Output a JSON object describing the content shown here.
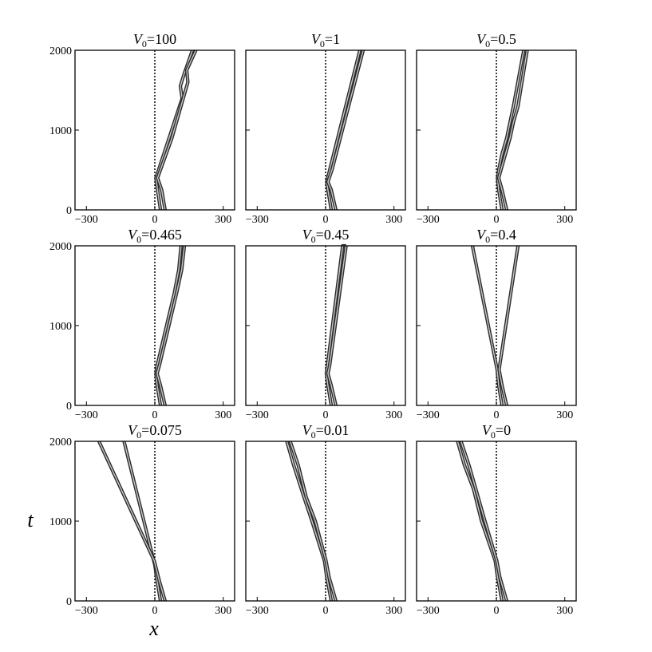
{
  "figure": {
    "xlabel": "x",
    "ylabel": "t"
  },
  "chart_data": [
    {
      "type": "line",
      "panel_title": {
        "var": "V",
        "sub": "0",
        "val": "=100"
      },
      "xlim": [
        -350,
        350
      ],
      "ylim": [
        0,
        2000
      ],
      "xticks": [
        -300,
        0,
        300
      ],
      "xticklabels": [
        "−300",
        "0",
        "300"
      ],
      "yticks": [
        0,
        1000,
        2000
      ],
      "yticklabels": [
        "0",
        "1000",
        "2000"
      ],
      "reference_line": {
        "x": 0,
        "style": "dotted"
      },
      "series": [
        {
          "x": [
            25,
            12,
            5,
            120,
            112,
            128,
            165
          ],
          "t": [
            0,
            250,
            400,
            1400,
            1550,
            1700,
            2000
          ]
        },
        {
          "x": [
            45,
            30,
            12,
            75,
            145,
            140,
            180
          ],
          "t": [
            0,
            250,
            400,
            900,
            1600,
            1750,
            2000
          ]
        }
      ]
    },
    {
      "type": "line",
      "panel_title": {
        "var": "V",
        "sub": "0",
        "val": "=1"
      },
      "xlim": [
        -350,
        350
      ],
      "ylim": [
        0,
        2000
      ],
      "xticks": [
        -300,
        0,
        300
      ],
      "xticklabels": [
        "−300",
        "0",
        "300"
      ],
      "yticks": [
        0,
        1000,
        2000
      ],
      "yticklabels": [
        "0",
        "1000",
        "2000"
      ],
      "reference_line": {
        "x": 0,
        "style": "dotted"
      },
      "series": [
        {
          "x": [
            25,
            10,
            5,
            18,
            150
          ],
          "t": [
            0,
            250,
            350,
            500,
            2000
          ]
        },
        {
          "x": [
            45,
            25,
            10,
            28,
            165
          ],
          "t": [
            0,
            250,
            350,
            500,
            2000
          ]
        }
      ]
    },
    {
      "type": "line",
      "panel_title": {
        "var": "V",
        "sub": "0",
        "val": "=0.5"
      },
      "xlim": [
        -350,
        350
      ],
      "ylim": [
        0,
        2000
      ],
      "xticks": [
        -300,
        0,
        300
      ],
      "xticklabels": [
        "−300",
        "0",
        "300"
      ],
      "yticks": [
        0,
        1000,
        2000
      ],
      "yticklabels": [
        "0",
        "1000",
        "2000"
      ],
      "reference_line": {
        "x": 0,
        "style": "dotted"
      },
      "series": [
        {
          "x": [
            25,
            10,
            5,
            10,
            25,
            45,
            60,
            75,
            120
          ],
          "t": [
            0,
            250,
            400,
            500,
            700,
            900,
            1100,
            1300,
            2000
          ]
        },
        {
          "x": [
            45,
            25,
            10,
            20,
            40,
            60,
            75,
            95,
            135
          ],
          "t": [
            0,
            250,
            400,
            500,
            700,
            900,
            1100,
            1300,
            2000
          ]
        }
      ]
    },
    {
      "type": "line",
      "panel_title": {
        "var": "V",
        "sub": "0",
        "val": "=0.465"
      },
      "xlim": [
        -350,
        350
      ],
      "ylim": [
        0,
        2000
      ],
      "xticks": [
        -300,
        0,
        300
      ],
      "xticklabels": [
        "−300",
        "0",
        "300"
      ],
      "yticks": [
        0,
        1000,
        2000
      ],
      "yticklabels": [
        "0",
        "1000",
        "2000"
      ],
      "reference_line": {
        "x": 0,
        "style": "dotted"
      },
      "series": [
        {
          "x": [
            25,
            10,
            5,
            10,
            35,
            60,
            85,
            105,
            115
          ],
          "t": [
            0,
            250,
            400,
            500,
            800,
            1100,
            1400,
            1700,
            2000
          ]
        },
        {
          "x": [
            45,
            25,
            10,
            20,
            45,
            70,
            95,
            118,
            130
          ],
          "t": [
            0,
            250,
            400,
            500,
            800,
            1100,
            1400,
            1700,
            2000
          ]
        }
      ]
    },
    {
      "type": "line",
      "panel_title": {
        "var": "V",
        "sub": "0",
        "val": "=0.45"
      },
      "xlim": [
        -350,
        350
      ],
      "ylim": [
        0,
        2000
      ],
      "xticks": [
        -300,
        0,
        300
      ],
      "xticklabels": [
        "−300",
        "0",
        "300"
      ],
      "yticks": [
        0,
        1000,
        2000
      ],
      "yticklabels": [
        "0",
        "1000",
        "2000"
      ],
      "reference_line": {
        "x": 0,
        "style": "dotted"
      },
      "series": [
        {
          "x": [
            25,
            10,
            3,
            8,
            75,
            90
          ],
          "t": [
            0,
            250,
            400,
            500,
            2000,
            2000
          ]
        },
        {
          "x": [
            45,
            25,
            10,
            18,
            90
          ],
          "t": [
            0,
            250,
            400,
            500,
            2000
          ]
        }
      ]
    },
    {
      "type": "line",
      "panel_title": {
        "var": "V",
        "sub": "0",
        "val": "=0.4"
      },
      "xlim": [
        -350,
        350
      ],
      "ylim": [
        0,
        2000
      ],
      "xticks": [
        -300,
        0,
        300
      ],
      "xticklabels": [
        "−300",
        "0",
        "300"
      ],
      "yticks": [
        0,
        1000,
        2000
      ],
      "yticklabels": [
        "0",
        "1000",
        "2000"
      ],
      "reference_line": {
        "x": 0,
        "style": "dotted"
      },
      "series": [
        {
          "x": [
            25,
            10,
            3,
            -105
          ],
          "t": [
            0,
            250,
            450,
            2000
          ]
        },
        {
          "x": [
            45,
            25,
            12,
            95
          ],
          "t": [
            0,
            250,
            450,
            2000
          ]
        }
      ]
    },
    {
      "type": "line",
      "panel_title": {
        "var": "V",
        "sub": "0",
        "val": "=0.075"
      },
      "xlim": [
        -350,
        350
      ],
      "ylim": [
        0,
        2000
      ],
      "xticks": [
        -300,
        0,
        300
      ],
      "xticklabels": [
        "−300",
        "0",
        "300"
      ],
      "yticks": [
        0,
        1000,
        2000
      ],
      "yticklabels": [
        "0",
        "1000",
        "2000"
      ],
      "reference_line": {
        "x": 0,
        "style": "dotted"
      },
      "series": [
        {
          "x": [
            25,
            10,
            0,
            -135
          ],
          "t": [
            0,
            250,
            450,
            2000
          ]
        },
        {
          "x": [
            45,
            20,
            -2,
            -245
          ],
          "t": [
            0,
            250,
            500,
            2000
          ]
        }
      ]
    },
    {
      "type": "line",
      "panel_title": {
        "var": "V",
        "sub": "0",
        "val": "=0.01"
      },
      "xlim": [
        -350,
        350
      ],
      "ylim": [
        0,
        2000
      ],
      "xticks": [
        -300,
        0,
        300
      ],
      "xticklabels": [
        "−300",
        "0",
        "300"
      ],
      "yticks": [
        0,
        1000,
        2000
      ],
      "yticklabels": [
        "0",
        "1000",
        "2000"
      ],
      "reference_line": {
        "x": 0,
        "style": "dotted"
      },
      "series": [
        {
          "x": [
            25,
            5,
            -5,
            -60,
            -95,
            -140,
            -170
          ],
          "t": [
            0,
            300,
            500,
            1000,
            1300,
            1700,
            2000
          ]
        },
        {
          "x": [
            45,
            15,
            2,
            -45,
            -85,
            -120,
            -155
          ],
          "t": [
            0,
            300,
            500,
            1000,
            1300,
            1700,
            2000
          ]
        }
      ]
    },
    {
      "type": "line",
      "panel_title": {
        "var": "V",
        "sub": "0",
        "val": "=0"
      },
      "xlim": [
        -350,
        350
      ],
      "ylim": [
        0,
        2000
      ],
      "xticks": [
        -300,
        0,
        300
      ],
      "xticklabels": [
        "−300",
        "0",
        "300"
      ],
      "yticks": [
        0,
        1000,
        2000
      ],
      "yticklabels": [
        "0",
        "1000",
        "2000"
      ],
      "reference_line": {
        "x": 0,
        "style": "dotted"
      },
      "series": [
        {
          "x": [
            25,
            5,
            -5,
            -65,
            -100,
            -140,
            -170
          ],
          "t": [
            0,
            300,
            500,
            1000,
            1400,
            1700,
            2000
          ]
        },
        {
          "x": [
            45,
            15,
            2,
            -50,
            -90,
            -120,
            -155
          ],
          "t": [
            0,
            300,
            500,
            1000,
            1400,
            1700,
            2000
          ]
        }
      ]
    }
  ]
}
